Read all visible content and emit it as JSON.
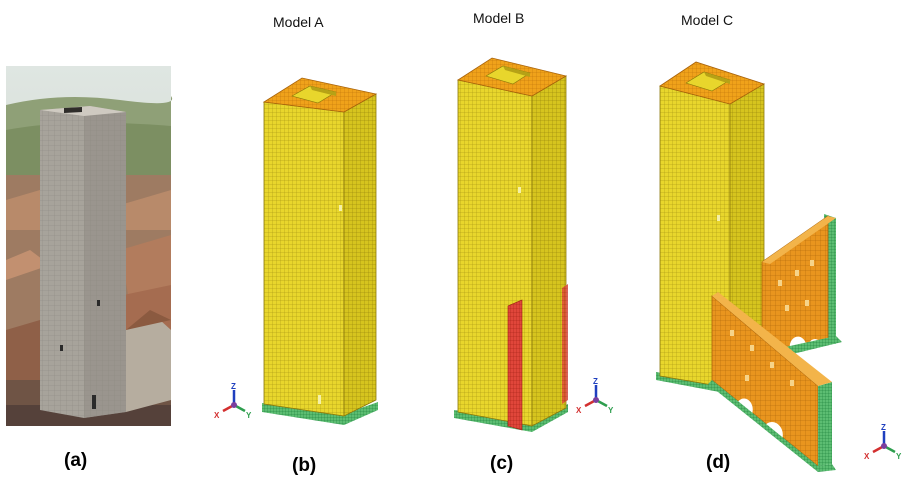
{
  "figure": {
    "panels": [
      {
        "id": "a",
        "caption": "(a)",
        "title": ""
      },
      {
        "id": "b",
        "caption": "(b)",
        "title": "Model A"
      },
      {
        "id": "c",
        "caption": "(c)",
        "title": "Model B"
      },
      {
        "id": "d",
        "caption": "(d)",
        "title": "Model C"
      }
    ],
    "axis_triad_labels": {
      "x": "X",
      "y": "Y",
      "z": "Z"
    }
  },
  "colors": {
    "mesh_yellow": "#e6d42a",
    "mesh_top_orange": "#f0a21a",
    "wall_orange": "#e8931c",
    "support_green": "#1f9e4a",
    "interface_red": "#d9302a",
    "axis_x": "#d32f2f",
    "axis_y": "#2e9e4e",
    "axis_z": "#1f3fbf"
  }
}
